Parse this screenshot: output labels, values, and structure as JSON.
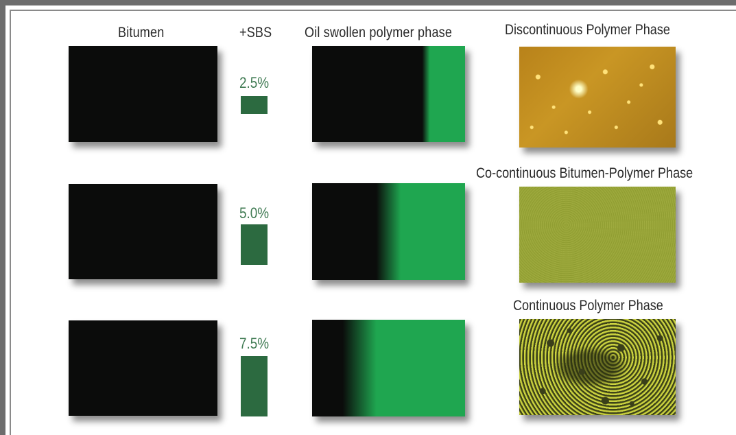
{
  "headers": {
    "bitumen": "Bitumen",
    "sbs": "+SBS",
    "oil_swollen": "Oil swollen polymer phase",
    "discontinuous": "Discontinuous Polymer Phase"
  },
  "rows": [
    {
      "sbs_percent": "2.5%",
      "phase_label": "Discontinuous Polymer Phase",
      "sbs_fraction": 0.025
    },
    {
      "sbs_percent": "5.0%",
      "phase_label": "Co-continuous Bitumen-Polymer Phase",
      "sbs_fraction": 0.05
    },
    {
      "sbs_percent": "7.5%",
      "phase_label": "Continuous Polymer Phase",
      "sbs_fraction": 0.075
    }
  ],
  "colors": {
    "bitumen": "#0b0c0b",
    "polymer_green": "#1fa650",
    "sbs_bar": "#2c6a40",
    "percent_text": "#3f7a52"
  }
}
